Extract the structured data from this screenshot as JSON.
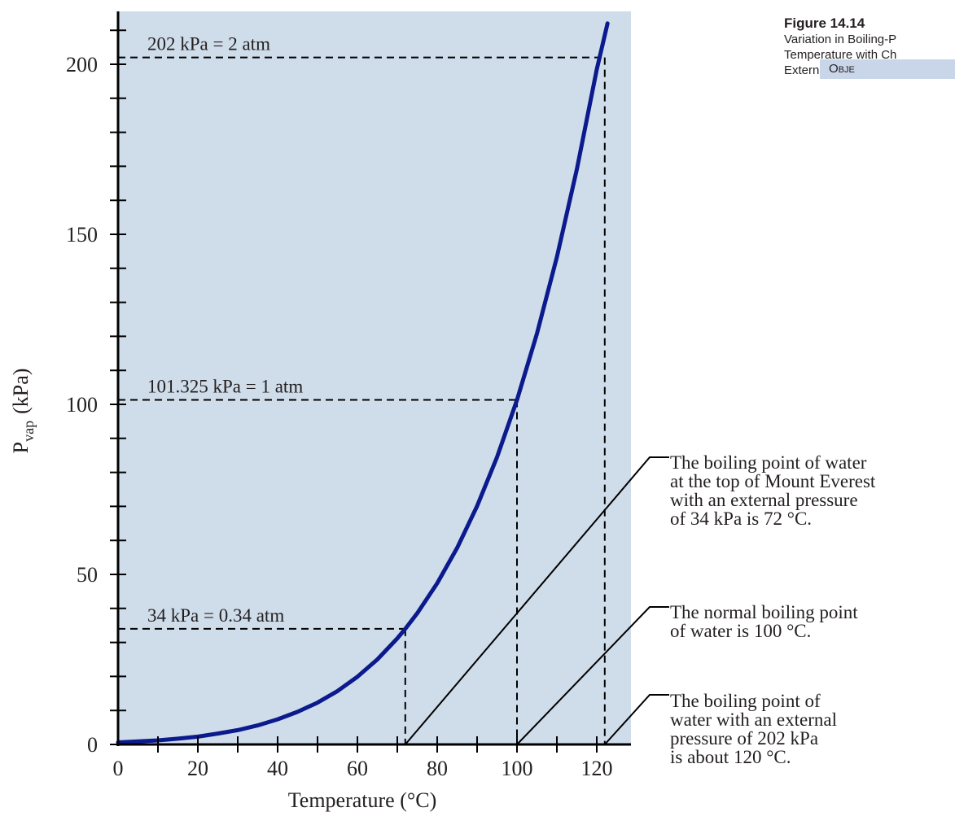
{
  "figure": {
    "title": "Figure 14.14",
    "caption_lines": [
      "Variation in Boiling-P",
      "Temperature with Ch",
      "External Pressure"
    ],
    "tab_label": "Obje"
  },
  "colors": {
    "plot_background": "#cfdcea",
    "curve": "#0b1a8c",
    "axis": "#000000",
    "tab_background": "#c9d5e8"
  },
  "chart_data": {
    "type": "line",
    "title": "",
    "xlabel": "Temperature  (°C)",
    "ylabel_main": "P",
    "ylabel_sub": "vap",
    "ylabel_unit": "(kPa)",
    "xlim": [
      0,
      127
    ],
    "ylim": [
      0,
      212
    ],
    "x_ticks": [
      0,
      20,
      40,
      60,
      80,
      100,
      120
    ],
    "y_ticks": [
      0,
      50,
      100,
      150,
      200
    ],
    "series": [
      {
        "x": [
          0,
          5,
          10,
          15,
          20,
          25,
          30,
          35,
          40,
          45,
          50,
          55,
          60,
          65,
          70,
          72,
          75,
          80,
          85,
          90,
          95,
          100,
          105,
          110,
          115,
          120,
          122.7
        ],
        "y": [
          0.6,
          0.9,
          1.2,
          1.7,
          2.3,
          3.2,
          4.2,
          5.6,
          7.4,
          9.6,
          12.3,
          15.7,
          19.9,
          25.0,
          31.2,
          34.0,
          38.6,
          47.4,
          57.8,
          70.1,
          84.5,
          101.3,
          120.8,
          143.3,
          169.1,
          198.5,
          212
        ]
      }
    ],
    "reference_lines": [
      {
        "label": "34 kPa = 0.34 atm",
        "pressure": 34,
        "temperature": 72
      },
      {
        "label": "101.325 kPa = 1 atm",
        "pressure": 101.325,
        "temperature": 100
      },
      {
        "label": "202 kPa = 2 atm",
        "pressure": 202,
        "temperature": 122
      }
    ],
    "annotations": [
      {
        "lines": [
          "The boiling point of water",
          "at the top of Mount Everest",
          "with an external pressure",
          "of 34 kPa is 72 °C."
        ],
        "points_to_temperature": 72
      },
      {
        "lines": [
          "The normal boiling point",
          "of water is 100 °C."
        ],
        "points_to_temperature": 100
      },
      {
        "lines": [
          "The boiling point of",
          "water with an external",
          "pressure of 202 kPa",
          "is about 120 °C."
        ],
        "points_to_temperature": 122
      }
    ]
  }
}
